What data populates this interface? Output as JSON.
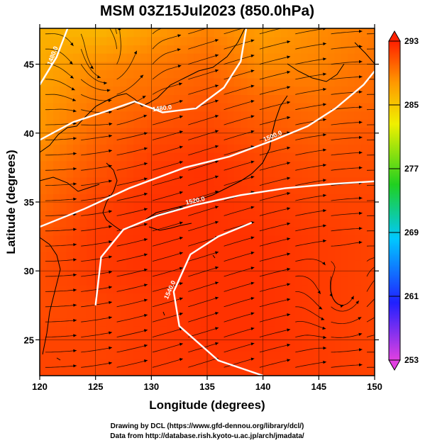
{
  "chart_data": {
    "type": "heatmap",
    "title": "MSM 03Z15Jul2023 (850.0hPa)",
    "xlabel": "Longitude (degrees)",
    "ylabel": "Latitude  (degrees)",
    "xlim": [
      120,
      150
    ],
    "ylim": [
      22.4,
      47.6
    ],
    "x_ticks": [
      120,
      125,
      130,
      135,
      140,
      145,
      150
    ],
    "y_ticks": [
      25,
      30,
      35,
      40,
      45
    ],
    "colorbar": {
      "range": [
        253,
        293
      ],
      "ticks": [
        253,
        261,
        269,
        277,
        285,
        293
      ],
      "colors": [
        "#e040e0",
        "#2020ff",
        "#00c8ff",
        "#20d020",
        "#f0f000",
        "#ff9800",
        "#ff2000"
      ],
      "extend": "both"
    },
    "field": {
      "description_values": "temperature (K) sampled on lon/lat nodes",
      "lon": [
        120,
        125,
        130,
        135,
        140,
        145,
        150
      ],
      "lat": [
        47.5,
        45,
        42.5,
        40,
        37.5,
        35,
        32.5,
        30,
        27.5,
        25,
        22.5
      ],
      "values": [
        [
          284.5,
          284.0,
          286.0,
          287.5,
          286.0,
          287.0,
          288.0
        ],
        [
          285.0,
          287.0,
          288.0,
          289.0,
          287.0,
          287.5,
          288.5
        ],
        [
          286.0,
          288.0,
          289.0,
          290.0,
          289.0,
          288.5,
          289.0
        ],
        [
          286.5,
          289.0,
          290.5,
          291.0,
          290.0,
          289.5,
          290.0
        ],
        [
          288.0,
          290.0,
          291.5,
          292.0,
          291.0,
          290.5,
          290.5
        ],
        [
          289.0,
          291.0,
          292.0,
          292.0,
          291.5,
          291.0,
          291.0
        ],
        [
          290.0,
          291.5,
          292.0,
          292.0,
          292.0,
          291.5,
          291.0
        ],
        [
          290.5,
          291.5,
          292.0,
          292.0,
          292.0,
          291.5,
          291.0
        ],
        [
          290.5,
          291.0,
          291.5,
          292.0,
          292.0,
          291.5,
          291.0
        ],
        [
          291.0,
          291.0,
          291.5,
          292.0,
          292.0,
          291.5,
          291.0
        ],
        [
          291.0,
          291.0,
          291.5,
          291.5,
          291.5,
          291.5,
          291.0
        ]
      ]
    },
    "height_contours": [
      {
        "label": "1480.0",
        "points": [
          [
            120,
            39.5
          ],
          [
            123,
            40.8
          ],
          [
            126,
            41.6
          ],
          [
            128.5,
            42.3
          ],
          [
            131,
            41.5
          ],
          [
            134,
            41.8
          ],
          [
            136.5,
            43.3
          ],
          [
            138,
            45.2
          ],
          [
            138.5,
            47.6
          ]
        ]
      },
      {
        "label": "1480.0",
        "points": [
          [
            120,
            43.5
          ],
          [
            121.5,
            45.5
          ],
          [
            122.5,
            47.6
          ]
        ]
      },
      {
        "label": "1500.0",
        "points": [
          [
            120,
            33.2
          ],
          [
            124,
            34.5
          ],
          [
            128,
            36.0
          ],
          [
            133,
            37.5
          ],
          [
            137,
            38.3
          ],
          [
            141,
            39.5
          ],
          [
            144,
            40.5
          ],
          [
            146.5,
            41.8
          ],
          [
            149,
            43.5
          ],
          [
            150,
            44.5
          ]
        ]
      },
      {
        "label": "1520.0",
        "points": [
          [
            125,
            27.5
          ],
          [
            125.5,
            31.0
          ],
          [
            127.5,
            33.0
          ],
          [
            130.5,
            34.0
          ],
          [
            134,
            34.8
          ],
          [
            138,
            35.5
          ],
          [
            142,
            36.0
          ],
          [
            146,
            36.3
          ],
          [
            150,
            36.5
          ]
        ]
      },
      {
        "label": "1540.0",
        "points": [
          [
            140,
            22.4
          ],
          [
            136,
            23.5
          ],
          [
            132.5,
            26.0
          ],
          [
            132,
            28.5
          ],
          [
            133.5,
            31.2
          ],
          [
            136,
            32.5
          ],
          [
            139,
            33.5
          ]
        ]
      }
    ],
    "credit_lines": [
      "Drawing by DCL (https://www.gfd-dennou.org/library/dcl/)",
      "Data from http://database.rish.kyoto-u.ac.jp/arch/jmadata/"
    ]
  }
}
